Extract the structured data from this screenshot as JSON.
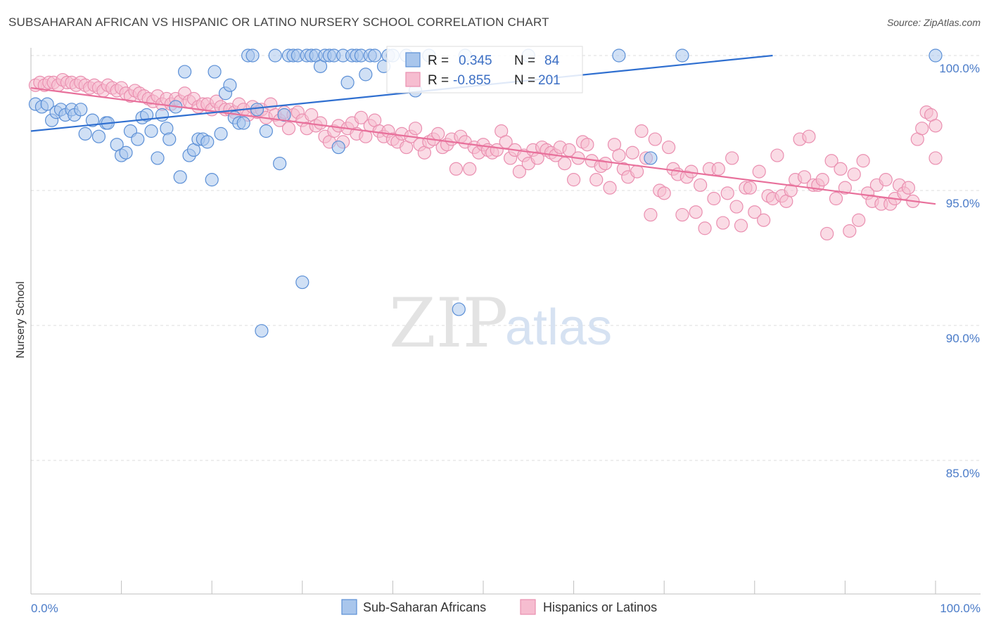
{
  "header": {
    "title": "SUBSAHARAN AFRICAN VS HISPANIC OR LATINO NURSERY SCHOOL CORRELATION CHART",
    "source": "Source: ZipAtlas.com"
  },
  "watermark": {
    "part1": "ZIP",
    "part2": "atlas"
  },
  "stats": {
    "blue": {
      "r_label": "R =",
      "r_value": "0.345",
      "n_label": "N =",
      "n_value": "84"
    },
    "pink": {
      "r_label": "R =",
      "r_value": "-0.855",
      "n_label": "N =",
      "n_value": "201"
    }
  },
  "colors": {
    "blue_fill": "#a9c6ec",
    "blue_stroke": "#5b8fd6",
    "blue_line": "#2f6fd0",
    "pink_fill": "#f6bdd0",
    "pink_stroke": "#ea8fb0",
    "pink_line": "#e8709b",
    "tick_text": "#4a7bc8",
    "grid": "#dddddd"
  },
  "chart_data": {
    "type": "scatter",
    "title": "SUBSAHARAN AFRICAN VS HISPANIC OR LATINO NURSERY SCHOOL CORRELATION CHART",
    "xlabel": "",
    "ylabel": "Nursery School",
    "xlim": [
      0,
      100
    ],
    "ylim": [
      80.3,
      100.5
    ],
    "x_tick_labels": [
      "0.0%",
      "100.0%"
    ],
    "y_ticks": [
      85.0,
      90.0,
      95.0,
      100.0
    ],
    "y_tick_labels": [
      "85.0%",
      "90.0%",
      "95.0%",
      "100.0%"
    ],
    "grid": true,
    "legend_position": "bottom",
    "series": [
      {
        "name": "Sub-Saharan Africans",
        "color": "#a9c6ec",
        "trend": {
          "x": [
            0,
            82
          ],
          "y": [
            97.2,
            100.0
          ]
        },
        "points": [
          [
            0.5,
            98.2
          ],
          [
            1.2,
            98.1
          ],
          [
            1.8,
            98.2
          ],
          [
            2.3,
            97.6
          ],
          [
            2.8,
            97.9
          ],
          [
            3.3,
            98.0
          ],
          [
            3.8,
            97.8
          ],
          [
            4.5,
            98.0
          ],
          [
            4.8,
            97.8
          ],
          [
            5.5,
            98.0
          ],
          [
            6.0,
            97.1
          ],
          [
            6.8,
            97.6
          ],
          [
            7.5,
            97.0
          ],
          [
            8.3,
            97.5
          ],
          [
            8.5,
            97.5
          ],
          [
            9.5,
            96.7
          ],
          [
            10.0,
            96.3
          ],
          [
            10.5,
            96.4
          ],
          [
            11.0,
            97.2
          ],
          [
            11.8,
            96.9
          ],
          [
            12.3,
            97.7
          ],
          [
            12.8,
            97.8
          ],
          [
            13.3,
            97.2
          ],
          [
            14.0,
            96.2
          ],
          [
            14.5,
            97.8
          ],
          [
            15.0,
            97.3
          ],
          [
            15.3,
            96.9
          ],
          [
            16.0,
            98.1
          ],
          [
            16.5,
            95.5
          ],
          [
            17.0,
            99.4
          ],
          [
            17.5,
            96.3
          ],
          [
            18.0,
            96.5
          ],
          [
            18.5,
            96.9
          ],
          [
            19.0,
            96.9
          ],
          [
            19.5,
            96.8
          ],
          [
            20.0,
            95.4
          ],
          [
            20.3,
            99.4
          ],
          [
            21.0,
            97.1
          ],
          [
            21.5,
            98.6
          ],
          [
            22.0,
            98.9
          ],
          [
            22.5,
            97.7
          ],
          [
            23.0,
            97.5
          ],
          [
            23.5,
            97.5
          ],
          [
            24.0,
            100.0
          ],
          [
            24.5,
            100.0
          ],
          [
            25.0,
            98.0
          ],
          [
            25.5,
            89.8
          ],
          [
            26.0,
            97.2
          ],
          [
            27.0,
            100.0
          ],
          [
            27.5,
            96.0
          ],
          [
            28.0,
            97.8
          ],
          [
            28.5,
            100.0
          ],
          [
            29.0,
            100.0
          ],
          [
            29.5,
            100.0
          ],
          [
            30.0,
            91.6
          ],
          [
            30.5,
            100.0
          ],
          [
            31.0,
            100.0
          ],
          [
            31.5,
            100.0
          ],
          [
            32.0,
            99.6
          ],
          [
            32.5,
            100.0
          ],
          [
            33.0,
            100.0
          ],
          [
            33.5,
            100.0
          ],
          [
            34.0,
            96.6
          ],
          [
            34.5,
            100.0
          ],
          [
            35.0,
            99.0
          ],
          [
            35.5,
            100.0
          ],
          [
            36.0,
            100.0
          ],
          [
            36.5,
            100.0
          ],
          [
            37.0,
            99.3
          ],
          [
            37.5,
            100.0
          ],
          [
            38.0,
            100.0
          ],
          [
            39.0,
            99.6
          ],
          [
            39.5,
            100.0
          ],
          [
            40.0,
            100.0
          ],
          [
            41.5,
            100.0
          ],
          [
            42.5,
            98.7
          ],
          [
            44.0,
            100.0
          ],
          [
            47.3,
            90.6
          ],
          [
            48.0,
            100.0
          ],
          [
            55.0,
            100.0
          ],
          [
            65.0,
            100.0
          ],
          [
            68.5,
            96.2
          ],
          [
            72.0,
            100.0
          ],
          [
            100.0,
            100.0
          ]
        ]
      },
      {
        "name": "Hispanics or Latinos",
        "color": "#f6bdd0",
        "trend": {
          "x": [
            0,
            100
          ],
          "y": [
            98.8,
            94.5
          ]
        },
        "points": [
          [
            0.5,
            98.9
          ],
          [
            1.0,
            99.0
          ],
          [
            1.5,
            98.9
          ],
          [
            2.0,
            99.0
          ],
          [
            2.5,
            99.0
          ],
          [
            3.0,
            98.9
          ],
          [
            3.5,
            99.1
          ],
          [
            4.0,
            99.0
          ],
          [
            4.5,
            99.0
          ],
          [
            5.0,
            98.9
          ],
          [
            5.5,
            99.0
          ],
          [
            6.0,
            98.9
          ],
          [
            6.5,
            98.8
          ],
          [
            7.0,
            98.9
          ],
          [
            7.5,
            98.8
          ],
          [
            8.0,
            98.7
          ],
          [
            8.5,
            98.9
          ],
          [
            9.0,
            98.8
          ],
          [
            9.5,
            98.7
          ],
          [
            10.0,
            98.8
          ],
          [
            10.5,
            98.6
          ],
          [
            11.0,
            98.5
          ],
          [
            11.5,
            98.7
          ],
          [
            12.0,
            98.6
          ],
          [
            12.5,
            98.5
          ],
          [
            13.0,
            98.4
          ],
          [
            13.5,
            98.3
          ],
          [
            14.0,
            98.5
          ],
          [
            14.5,
            98.2
          ],
          [
            15.0,
            98.4
          ],
          [
            15.5,
            98.2
          ],
          [
            16.0,
            98.4
          ],
          [
            16.5,
            98.3
          ],
          [
            17.0,
            98.6
          ],
          [
            17.5,
            98.3
          ],
          [
            18.0,
            98.4
          ],
          [
            18.5,
            98.1
          ],
          [
            19.0,
            98.2
          ],
          [
            19.5,
            98.2
          ],
          [
            20.0,
            98.0
          ],
          [
            20.5,
            98.3
          ],
          [
            21.0,
            98.1
          ],
          [
            21.5,
            98.0
          ],
          [
            22.0,
            98.0
          ],
          [
            22.5,
            97.9
          ],
          [
            23.0,
            98.2
          ],
          [
            23.5,
            98.0
          ],
          [
            24.0,
            97.8
          ],
          [
            24.5,
            98.1
          ],
          [
            25.0,
            97.9
          ],
          [
            25.5,
            98.0
          ],
          [
            26.0,
            97.7
          ],
          [
            26.5,
            98.2
          ],
          [
            27.0,
            97.8
          ],
          [
            27.5,
            97.6
          ],
          [
            28.0,
            97.9
          ],
          [
            28.5,
            97.3
          ],
          [
            29.0,
            97.8
          ],
          [
            29.5,
            97.9
          ],
          [
            30.0,
            97.6
          ],
          [
            30.5,
            97.3
          ],
          [
            31.0,
            97.8
          ],
          [
            31.5,
            97.4
          ],
          [
            32.0,
            97.5
          ],
          [
            32.5,
            97.0
          ],
          [
            33.0,
            96.8
          ],
          [
            33.5,
            97.2
          ],
          [
            34.0,
            97.4
          ],
          [
            34.5,
            96.8
          ],
          [
            35.0,
            97.3
          ],
          [
            35.5,
            97.5
          ],
          [
            36.0,
            97.1
          ],
          [
            36.5,
            97.7
          ],
          [
            37.0,
            97.0
          ],
          [
            37.5,
            97.4
          ],
          [
            38.0,
            97.6
          ],
          [
            38.5,
            97.2
          ],
          [
            39.0,
            97.0
          ],
          [
            39.5,
            97.2
          ],
          [
            40.0,
            96.9
          ],
          [
            40.5,
            96.8
          ],
          [
            41.0,
            97.1
          ],
          [
            41.5,
            96.6
          ],
          [
            42.0,
            97.0
          ],
          [
            42.5,
            97.3
          ],
          [
            43.0,
            96.7
          ],
          [
            43.5,
            96.4
          ],
          [
            44.0,
            96.8
          ],
          [
            44.5,
            96.9
          ],
          [
            45.0,
            97.1
          ],
          [
            45.5,
            96.6
          ],
          [
            46.0,
            96.7
          ],
          [
            46.5,
            96.9
          ],
          [
            47.0,
            95.8
          ],
          [
            47.5,
            97.0
          ],
          [
            48.0,
            96.8
          ],
          [
            48.5,
            95.8
          ],
          [
            49.0,
            96.6
          ],
          [
            49.5,
            96.4
          ],
          [
            50.0,
            96.7
          ],
          [
            50.5,
            96.5
          ],
          [
            51.0,
            96.4
          ],
          [
            51.5,
            96.5
          ],
          [
            52.0,
            97.2
          ],
          [
            52.5,
            96.8
          ],
          [
            53.0,
            96.2
          ],
          [
            53.5,
            96.5
          ],
          [
            54.0,
            95.7
          ],
          [
            54.5,
            96.3
          ],
          [
            55.0,
            96.0
          ],
          [
            55.5,
            96.5
          ],
          [
            56.0,
            96.2
          ],
          [
            56.5,
            96.6
          ],
          [
            57.0,
            96.5
          ],
          [
            57.5,
            96.4
          ],
          [
            58.0,
            96.3
          ],
          [
            58.5,
            96.6
          ],
          [
            59.0,
            96.0
          ],
          [
            59.5,
            96.5
          ],
          [
            60.0,
            95.4
          ],
          [
            60.5,
            96.2
          ],
          [
            61.0,
            96.8
          ],
          [
            61.5,
            96.7
          ],
          [
            62.0,
            96.1
          ],
          [
            62.5,
            95.4
          ],
          [
            63.0,
            95.9
          ],
          [
            63.5,
            96.0
          ],
          [
            64.0,
            95.1
          ],
          [
            64.5,
            96.7
          ],
          [
            65.0,
            96.3
          ],
          [
            65.5,
            95.8
          ],
          [
            66.0,
            95.5
          ],
          [
            66.5,
            96.4
          ],
          [
            67.0,
            95.7
          ],
          [
            67.5,
            97.2
          ],
          [
            68.0,
            96.2
          ],
          [
            68.5,
            94.1
          ],
          [
            69.0,
            96.9
          ],
          [
            69.5,
            95.0
          ],
          [
            70.0,
            94.9
          ],
          [
            70.5,
            96.6
          ],
          [
            71.0,
            95.8
          ],
          [
            71.5,
            95.6
          ],
          [
            72.0,
            94.1
          ],
          [
            72.5,
            95.5
          ],
          [
            73.0,
            95.7
          ],
          [
            73.5,
            94.2
          ],
          [
            74.0,
            95.2
          ],
          [
            74.5,
            93.6
          ],
          [
            75.0,
            95.8
          ],
          [
            75.5,
            94.7
          ],
          [
            76.0,
            95.8
          ],
          [
            76.5,
            93.8
          ],
          [
            77.0,
            94.9
          ],
          [
            77.5,
            96.2
          ],
          [
            78.0,
            94.4
          ],
          [
            78.5,
            93.7
          ],
          [
            79.0,
            95.1
          ],
          [
            79.5,
            95.1
          ],
          [
            80.0,
            94.2
          ],
          [
            80.5,
            95.7
          ],
          [
            81.0,
            93.9
          ],
          [
            81.5,
            94.8
          ],
          [
            82.0,
            94.7
          ],
          [
            82.5,
            96.3
          ],
          [
            83.0,
            94.8
          ],
          [
            83.5,
            94.6
          ],
          [
            84.0,
            95.0
          ],
          [
            84.5,
            95.4
          ],
          [
            85.0,
            96.9
          ],
          [
            85.5,
            95.5
          ],
          [
            86.0,
            97.0
          ],
          [
            86.5,
            95.2
          ],
          [
            87.0,
            95.2
          ],
          [
            87.5,
            95.4
          ],
          [
            88.0,
            93.4
          ],
          [
            88.5,
            96.1
          ],
          [
            89.0,
            94.7
          ],
          [
            89.5,
            95.8
          ],
          [
            90.0,
            95.1
          ],
          [
            90.5,
            93.5
          ],
          [
            91.0,
            95.6
          ],
          [
            91.5,
            93.9
          ],
          [
            92.0,
            96.1
          ],
          [
            92.5,
            94.9
          ],
          [
            93.0,
            94.6
          ],
          [
            93.5,
            95.2
          ],
          [
            94.0,
            94.5
          ],
          [
            94.5,
            95.4
          ],
          [
            95.0,
            94.5
          ],
          [
            95.5,
            94.7
          ],
          [
            96.0,
            95.2
          ],
          [
            96.5,
            94.9
          ],
          [
            97.0,
            95.1
          ],
          [
            97.5,
            94.6
          ],
          [
            98.0,
            96.9
          ],
          [
            98.5,
            97.3
          ],
          [
            99.0,
            97.9
          ],
          [
            99.5,
            97.8
          ],
          [
            100.0,
            97.4
          ],
          [
            100.0,
            96.2
          ]
        ]
      }
    ]
  }
}
